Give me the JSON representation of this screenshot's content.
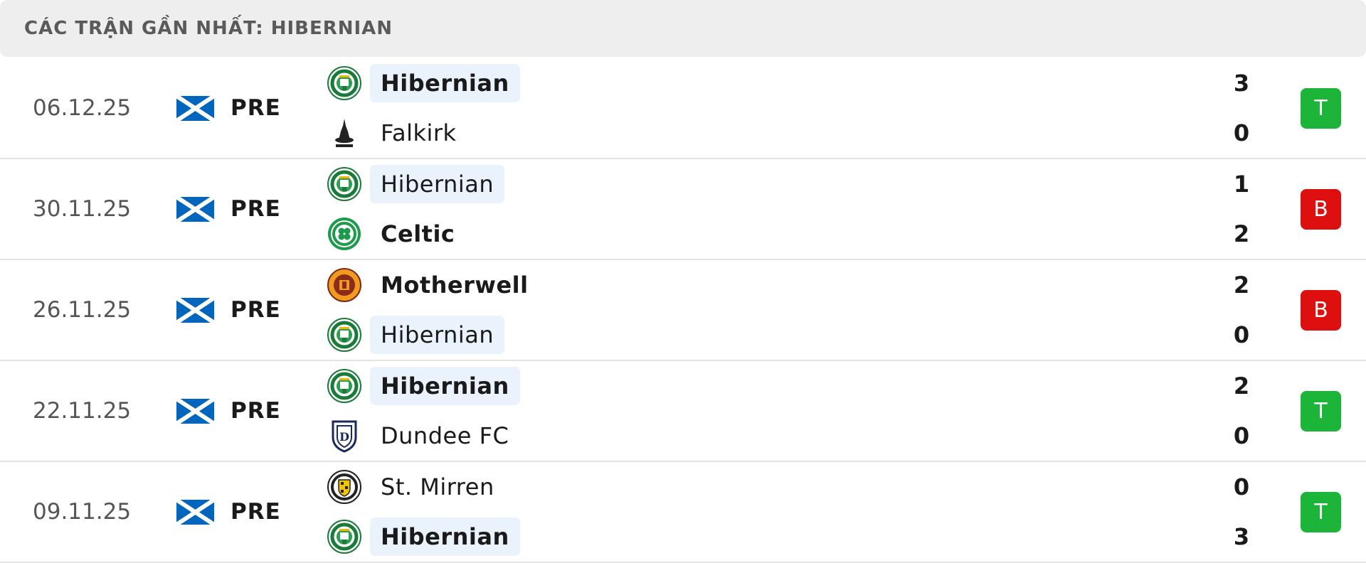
{
  "header": {
    "title": "CÁC TRẬN GẦN NHẤT: HIBERNIAN"
  },
  "colors": {
    "win": "#1db43a",
    "loss": "#dd0f0f",
    "highlight": "#eaf3fc",
    "header_bg": "#eeeeee"
  },
  "matches": [
    {
      "date": "06.12.25",
      "flag_icon": "scotland-flag-icon",
      "league": "PRE",
      "home": {
        "name": "Hibernian",
        "crest_icon": "hibernian-crest-icon",
        "score": "3"
      },
      "away": {
        "name": "Falkirk",
        "crest_icon": "falkirk-crest-icon",
        "score": "0"
      },
      "result": "T",
      "result_type": "win"
    },
    {
      "date": "30.11.25",
      "flag_icon": "scotland-flag-icon",
      "league": "PRE",
      "home": {
        "name": "Hibernian",
        "crest_icon": "hibernian-crest-icon",
        "score": "1"
      },
      "away": {
        "name": "Celtic",
        "crest_icon": "celtic-crest-icon",
        "score": "2"
      },
      "result": "B",
      "result_type": "loss"
    },
    {
      "date": "26.11.25",
      "flag_icon": "scotland-flag-icon",
      "league": "PRE",
      "home": {
        "name": "Motherwell",
        "crest_icon": "motherwell-crest-icon",
        "score": "2"
      },
      "away": {
        "name": "Hibernian",
        "crest_icon": "hibernian-crest-icon",
        "score": "0"
      },
      "result": "B",
      "result_type": "loss"
    },
    {
      "date": "22.11.25",
      "flag_icon": "scotland-flag-icon",
      "league": "PRE",
      "home": {
        "name": "Hibernian",
        "crest_icon": "hibernian-crest-icon",
        "score": "2"
      },
      "away": {
        "name": "Dundee FC",
        "crest_icon": "dundee-crest-icon",
        "score": "0"
      },
      "result": "T",
      "result_type": "win"
    },
    {
      "date": "09.11.25",
      "flag_icon": "scotland-flag-icon",
      "league": "PRE",
      "home": {
        "name": "St. Mirren",
        "crest_icon": "st-mirren-crest-icon",
        "score": "0"
      },
      "away": {
        "name": "Hibernian",
        "crest_icon": "hibernian-crest-icon",
        "score": "3"
      },
      "result": "T",
      "result_type": "win"
    }
  ]
}
